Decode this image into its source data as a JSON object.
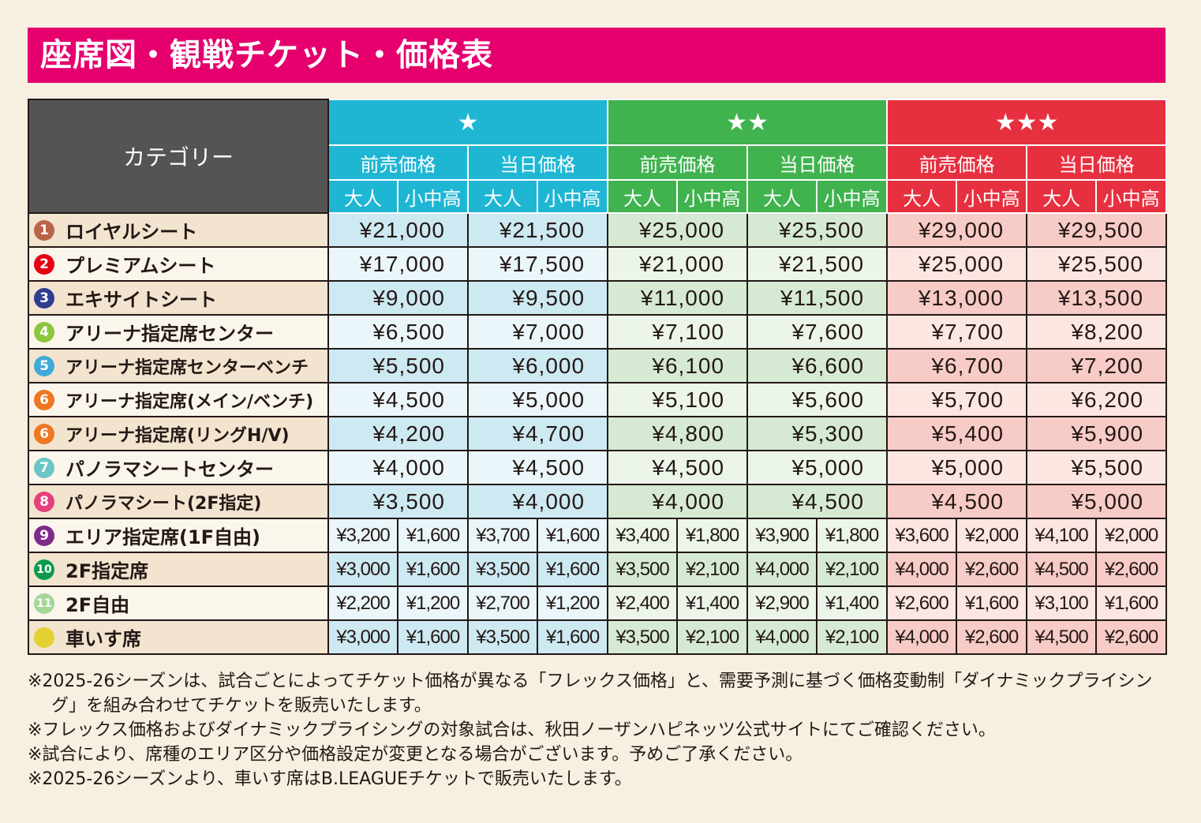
{
  "title": "座席図・観戦チケット・価格表",
  "table": {
    "category_header": "カテゴリー",
    "groups": [
      {
        "stars": "★",
        "presale": "前売価格",
        "sameday": "当日価格",
        "adult": "大人",
        "child": "小中高",
        "head_color": "#1fb6d4",
        "cell_dark": "#cde9f2",
        "cell_light": "#eaf6fa"
      },
      {
        "stars": "★★",
        "presale": "前売価格",
        "sameday": "当日価格",
        "adult": "大人",
        "child": "小中高",
        "head_color": "#40b34f",
        "cell_dark": "#d6ead3",
        "cell_light": "#ecf5ea"
      },
      {
        "stars": "★★★",
        "presale": "前売価格",
        "sameday": "当日価格",
        "adult": "大人",
        "child": "小中高",
        "head_color": "#e7303f",
        "cell_dark": "#f7cbc6",
        "cell_light": "#fbe6e2"
      }
    ],
    "rows_single": [
      {
        "badge": "1",
        "badge_color": "#b9634a",
        "label": "ロイヤルシート",
        "prices": [
          "¥21,000",
          "¥21,500",
          "¥25,000",
          "¥25,500",
          "¥29,000",
          "¥29,500"
        ]
      },
      {
        "badge": "2",
        "badge_color": "#e60012",
        "label": "プレミアムシート",
        "prices": [
          "¥17,000",
          "¥17,500",
          "¥21,000",
          "¥21,500",
          "¥25,000",
          "¥25,500"
        ]
      },
      {
        "badge": "3",
        "badge_color": "#2e3e8f",
        "label": "エキサイトシート",
        "prices": [
          "¥9,000",
          "¥9,500",
          "¥11,000",
          "¥11,500",
          "¥13,000",
          "¥13,500"
        ]
      },
      {
        "badge": "4",
        "badge_color": "#8cc63f",
        "label": "アリーナ指定席センター",
        "prices": [
          "¥6,500",
          "¥7,000",
          "¥7,100",
          "¥7,600",
          "¥7,700",
          "¥8,200"
        ]
      },
      {
        "badge": "5",
        "badge_color": "#3fa9d8",
        "label": "アリーナ指定席センターベンチ",
        "prices": [
          "¥5,500",
          "¥6,000",
          "¥6,100",
          "¥6,600",
          "¥6,700",
          "¥7,200"
        ]
      },
      {
        "badge": "6",
        "badge_color": "#ee7722",
        "label": "アリーナ指定席(メイン/ベンチ)",
        "prices": [
          "¥4,500",
          "¥5,000",
          "¥5,100",
          "¥5,600",
          "¥5,700",
          "¥6,200"
        ]
      },
      {
        "badge": "6",
        "badge_color": "#ee7722",
        "label": "アリーナ指定席(リングH/V)",
        "prices": [
          "¥4,200",
          "¥4,700",
          "¥4,800",
          "¥5,300",
          "¥5,400",
          "¥5,900"
        ]
      },
      {
        "badge": "7",
        "badge_color": "#6cc5c6",
        "label": "パノラマシートセンター",
        "prices": [
          "¥4,000",
          "¥4,500",
          "¥4,500",
          "¥5,000",
          "¥5,000",
          "¥5,500"
        ]
      },
      {
        "badge": "8",
        "badge_color": "#e4407b",
        "label": "パノラマシート(2F指定)",
        "prices": [
          "¥3,500",
          "¥4,000",
          "¥4,000",
          "¥4,500",
          "¥4,500",
          "¥5,000"
        ]
      }
    ],
    "rows_split": [
      {
        "badge": "9",
        "badge_color": "#7d2b8b",
        "label": "エリア指定席(1F自由)",
        "prices": [
          "¥3,200",
          "¥1,600",
          "¥3,700",
          "¥1,600",
          "¥3,400",
          "¥1,800",
          "¥3,900",
          "¥1,800",
          "¥3,600",
          "¥2,000",
          "¥4,100",
          "¥2,000"
        ]
      },
      {
        "badge": "10",
        "badge_color": "#0d9a4e",
        "label": "2F指定席",
        "prices": [
          "¥3,000",
          "¥1,600",
          "¥3,500",
          "¥1,600",
          "¥3,500",
          "¥2,100",
          "¥4,000",
          "¥2,100",
          "¥4,000",
          "¥2,600",
          "¥4,500",
          "¥2,600"
        ]
      },
      {
        "badge": "11",
        "badge_color": "#a6d69a",
        "label": "2F自由",
        "prices": [
          "¥2,200",
          "¥1,200",
          "¥2,700",
          "¥1,200",
          "¥2,400",
          "¥1,400",
          "¥2,900",
          "¥1,400",
          "¥2,600",
          "¥1,600",
          "¥3,100",
          "¥1,600"
        ]
      },
      {
        "badge": "",
        "badge_color": "#e2d130",
        "label": "車いす席",
        "prices": [
          "¥3,000",
          "¥1,600",
          "¥3,500",
          "¥1,600",
          "¥3,500",
          "¥2,100",
          "¥4,000",
          "¥2,100",
          "¥4,000",
          "¥2,600",
          "¥4,500",
          "¥2,600"
        ]
      }
    ],
    "cat_dark": "#f2e4cf",
    "cat_light": "#fbf6ec"
  },
  "notes": [
    "※2025-26シーズンは、試合ごとによってチケット価格が異なる「フレックス価格」と、需要予測に基づく価格変動制「ダイナミックプライシング」を組み合わせてチケットを販売いたします。",
    "※フレックス価格およびダイナミックプライシングの対象試合は、秋田ノーザンハピネッツ公式サイトにてご確認ください。",
    "※試合により、席種のエリア区分や価格設定が変更となる場合がございます。予めご了承ください。",
    "※2025-26シーズンより、車いす席はB.LEAGUEチケットで販売いたします。"
  ]
}
